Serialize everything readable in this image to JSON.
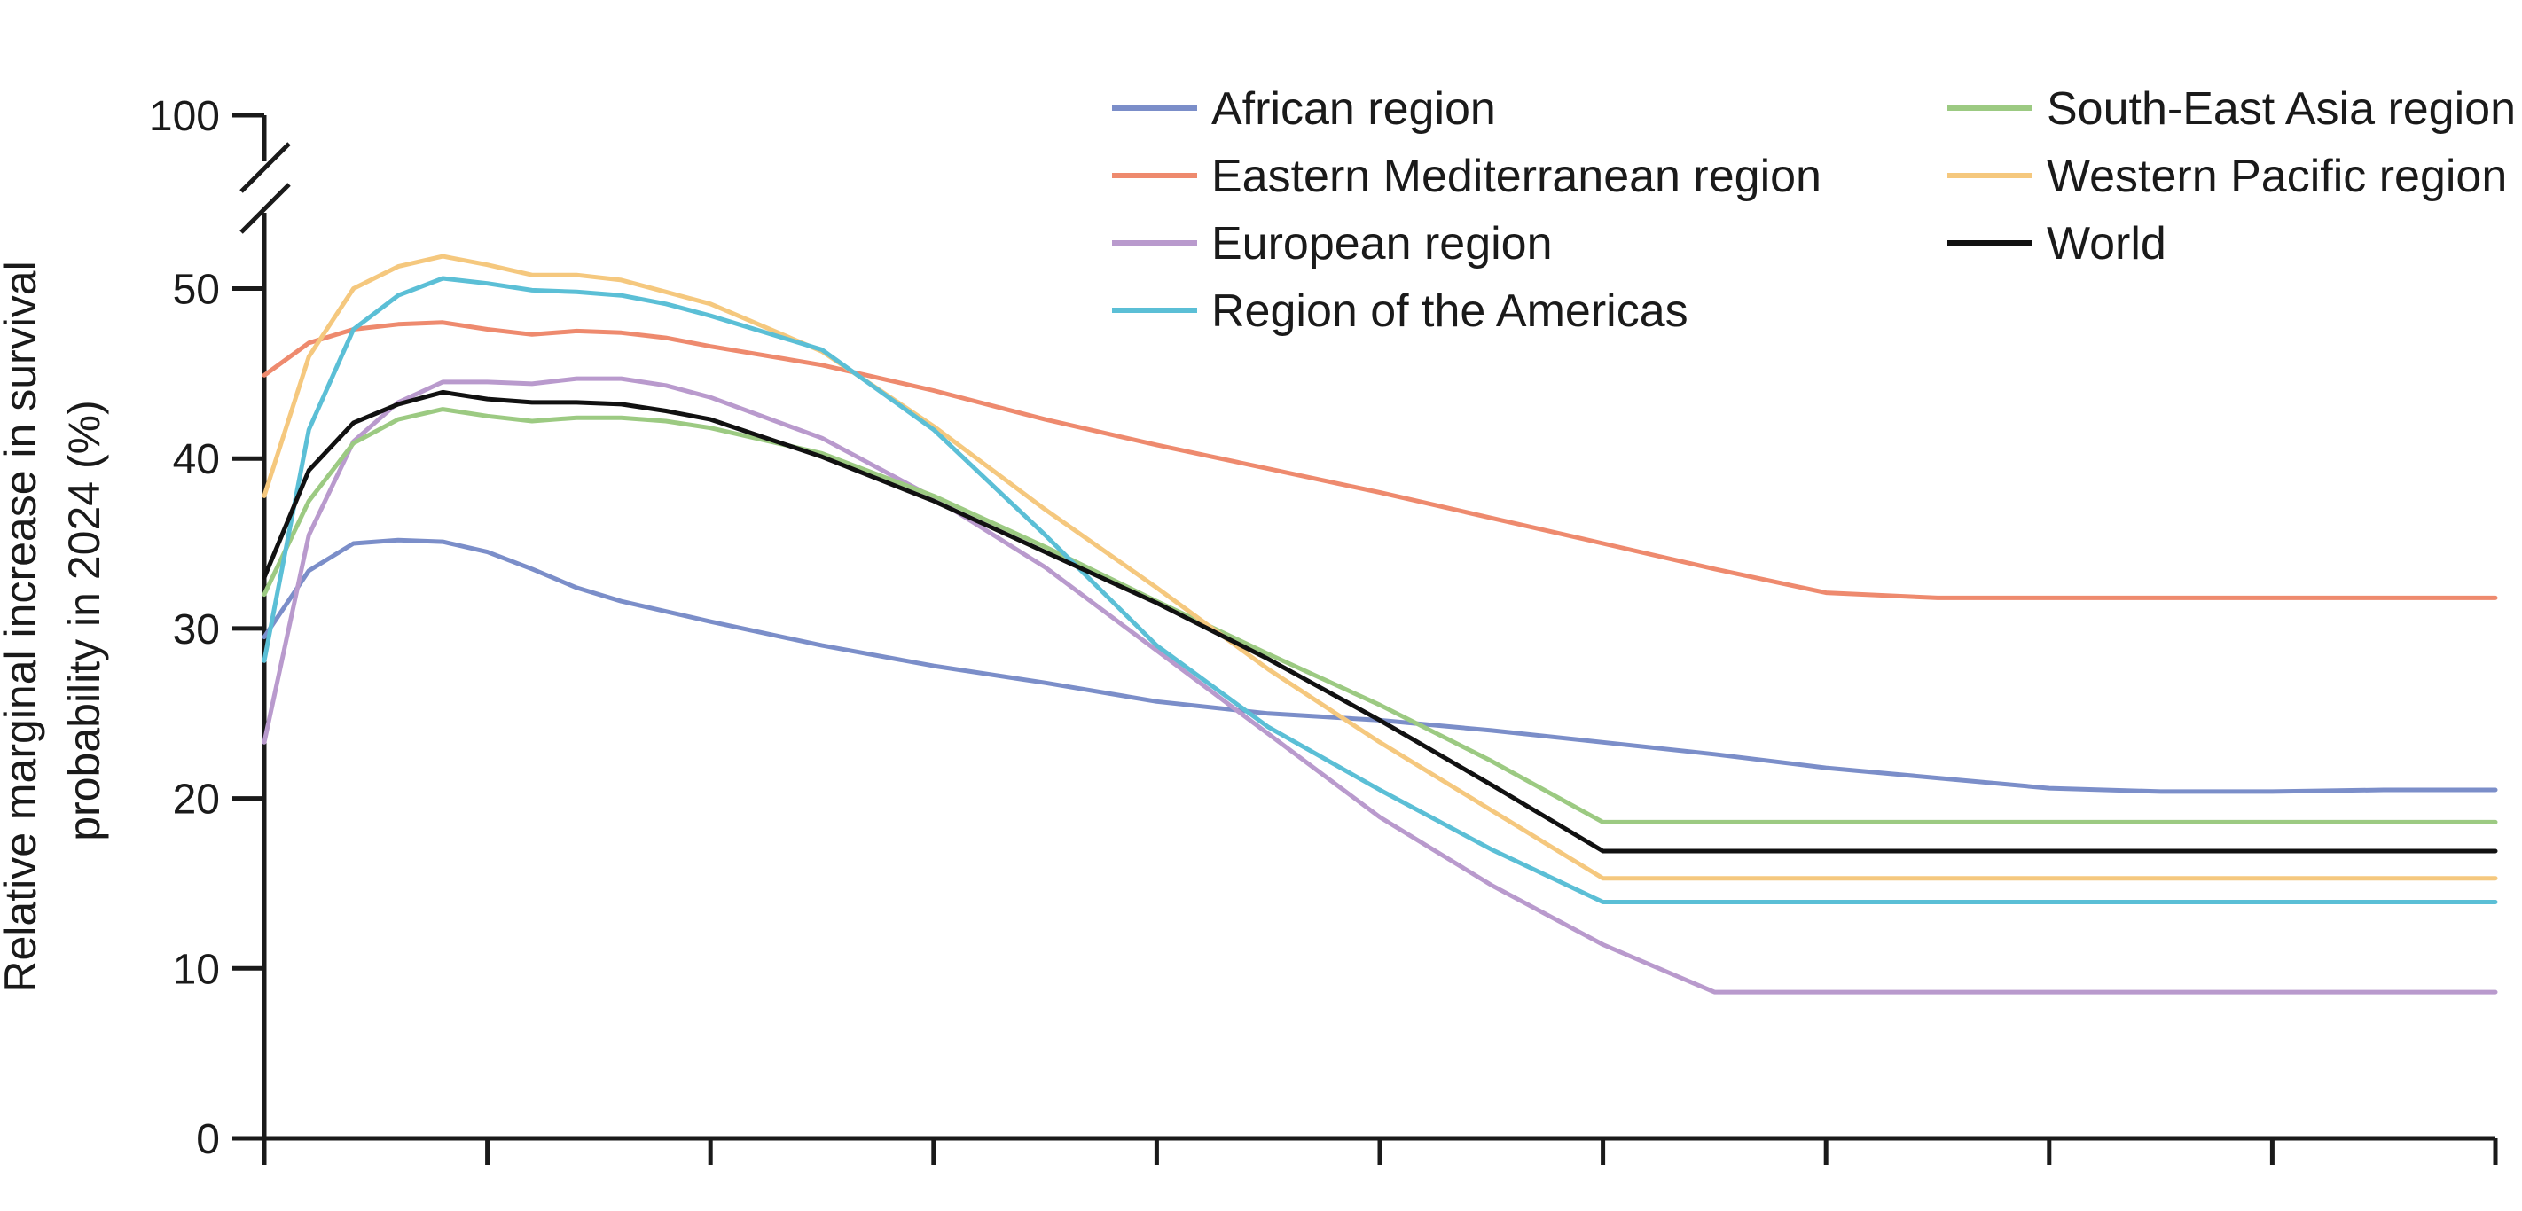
{
  "chart_data": {
    "type": "line",
    "title": "",
    "xlabel": "",
    "ylabel": "Relative marginal increase in survival probability in 2024 (%)",
    "ylabel_lines": [
      "Relative marginal increase in survival",
      "probability in 2024 (%)"
    ],
    "y_ticks": [
      0,
      10,
      20,
      30,
      40,
      50
    ],
    "y_break_tick": 100,
    "ylim": [
      0,
      53
    ],
    "x_tick_count": 11,
    "x_tick_labels": [],
    "grid": false,
    "legend_position": "top-right",
    "x": [
      0,
      0.2,
      0.4,
      0.6,
      0.8,
      1.0,
      1.2,
      1.4,
      1.6,
      1.8,
      2.0,
      2.5,
      3.0,
      3.5,
      4.0,
      4.5,
      5.0,
      5.5,
      6.0,
      6.5,
      7.0,
      7.5,
      8.0,
      8.5,
      9.0,
      9.5,
      10.0
    ],
    "series": [
      {
        "name": "African region",
        "color": "#7b8ec9",
        "values": [
          29.5,
          33.4,
          35.0,
          35.2,
          35.1,
          34.5,
          33.5,
          32.4,
          31.6,
          31.0,
          30.4,
          29.0,
          27.8,
          26.8,
          25.7,
          25.0,
          24.6,
          24.0,
          23.3,
          22.6,
          21.8,
          21.2,
          20.6,
          20.4,
          20.4,
          20.5,
          20.5
        ]
      },
      {
        "name": "Eastern Mediterranean region",
        "color": "#ee8a6e",
        "values": [
          44.9,
          46.8,
          47.6,
          47.9,
          48.0,
          47.6,
          47.3,
          47.5,
          47.4,
          47.1,
          46.6,
          45.5,
          44.0,
          42.3,
          40.8,
          39.4,
          38.0,
          36.5,
          35.0,
          33.5,
          32.1,
          31.8,
          31.8,
          31.8,
          31.8,
          31.8,
          31.8
        ]
      },
      {
        "name": "European region",
        "color": "#b99acd",
        "values": [
          23.3,
          35.5,
          41.0,
          43.3,
          44.5,
          44.5,
          44.4,
          44.7,
          44.7,
          44.3,
          43.6,
          41.2,
          37.7,
          33.6,
          28.7,
          23.8,
          18.9,
          14.9,
          11.4,
          8.6,
          8.6,
          8.6,
          8.6,
          8.6,
          8.6,
          8.6,
          8.6
        ]
      },
      {
        "name": "Region of the Americas",
        "color": "#5bbfd6",
        "values": [
          28.1,
          41.7,
          47.6,
          49.6,
          50.6,
          50.3,
          49.9,
          49.8,
          49.6,
          49.1,
          48.4,
          46.4,
          41.7,
          35.5,
          29.0,
          24.2,
          20.5,
          17.0,
          13.9,
          13.9,
          13.9,
          13.9,
          13.9,
          13.9,
          13.9,
          13.9,
          13.9
        ]
      },
      {
        "name": "South-East Asia region",
        "color": "#9cca82",
        "values": [
          32.0,
          37.5,
          40.9,
          42.3,
          42.9,
          42.5,
          42.2,
          42.4,
          42.4,
          42.2,
          41.8,
          40.3,
          37.8,
          34.8,
          31.6,
          28.5,
          25.5,
          22.2,
          18.6,
          18.6,
          18.6,
          18.6,
          18.6,
          18.6,
          18.6,
          18.6,
          18.6
        ]
      },
      {
        "name": "Western Pacific region",
        "color": "#f5c87e",
        "values": [
          37.8,
          46.0,
          50.0,
          51.3,
          51.9,
          51.4,
          50.8,
          50.8,
          50.5,
          49.8,
          49.1,
          46.3,
          41.9,
          37.0,
          32.4,
          27.6,
          23.3,
          19.3,
          15.3,
          15.3,
          15.3,
          15.3,
          15.3,
          15.3,
          15.3,
          15.3,
          15.3
        ]
      },
      {
        "name": "World",
        "color": "#111111",
        "values": [
          33.0,
          39.3,
          42.1,
          43.2,
          43.9,
          43.5,
          43.3,
          43.3,
          43.2,
          42.8,
          42.3,
          40.1,
          37.5,
          34.5,
          31.5,
          28.2,
          24.6,
          20.8,
          16.9,
          16.9,
          16.9,
          16.9,
          16.9,
          16.9,
          16.9,
          16.9,
          16.9
        ]
      }
    ]
  }
}
